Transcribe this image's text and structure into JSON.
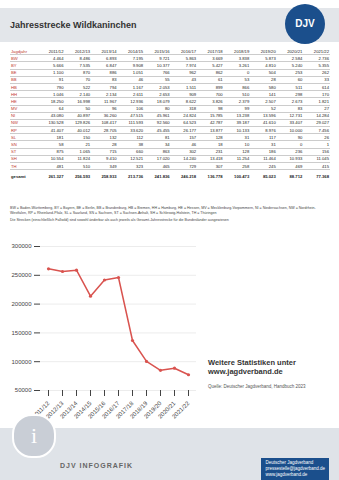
{
  "header": {
    "title": "Jahresstrecke Wildkaninchen",
    "logo": "DJV"
  },
  "table": {
    "columns": [
      "Jagdjahr",
      "2011/12",
      "2012/13",
      "2013/14",
      "2014/15",
      "2015/16",
      "2016/17",
      "2017/18",
      "2018/19",
      "2019/20",
      "2020/21",
      "2021/22"
    ],
    "rows": [
      [
        "BW",
        "4.464",
        "8.486",
        "6.893",
        "7.195",
        "9.721",
        "5.863",
        "3.669",
        "3.838",
        "5.873",
        "2.584",
        "2.736"
      ],
      [
        "BY",
        "5.666",
        "7.535",
        "6.847",
        "9.908",
        "10.377",
        "7.974",
        "5.427",
        "3.261",
        "4.810",
        "5.240",
        "5.355"
      ],
      [
        "BE",
        "1.100",
        "870",
        "886",
        "1.051",
        "766",
        "962",
        "862",
        "0",
        "504",
        "253",
        "262"
      ],
      [
        "BB",
        "91",
        "70",
        "83",
        "46",
        "55",
        "43",
        "61",
        "53",
        "28",
        "60",
        "33"
      ],
      [
        "HB",
        "790",
        "522",
        "794",
        "1.167",
        "2.053",
        "1.511",
        "899",
        "866",
        "580",
        "511",
        "614"
      ],
      [
        "HH",
        "1.046",
        "2.140",
        "2.134",
        "2.611",
        "2.653",
        "909",
        "700",
        "510",
        "141",
        "298",
        "170"
      ],
      [
        "HE",
        "18.250",
        "16.998",
        "11.967",
        "12.936",
        "18.079",
        "8.622",
        "3.826",
        "2.379",
        "2.507",
        "2.673",
        "1.821"
      ],
      [
        "MV",
        "64",
        "50",
        "96",
        "106",
        "80",
        "318",
        "98",
        "99",
        "52",
        "83",
        "27"
      ],
      [
        "NI",
        "43.080",
        "40.897",
        "36.260",
        "47.515",
        "45.961",
        "24.824",
        "15.785",
        "13.238",
        "13.596",
        "12.731",
        "14.284"
      ],
      [
        "NW",
        "130.528",
        "129.826",
        "108.417",
        "111.593",
        "92.560",
        "64.523",
        "42.787",
        "39.187",
        "41.610",
        "33.407",
        "29.027"
      ],
      [
        "RP",
        "41.407",
        "40.012",
        "28.705",
        "33.620",
        "45.455",
        "26.177",
        "13.877",
        "10.133",
        "8.976",
        "10.000",
        "7.456"
      ],
      [
        "SL",
        "181",
        "150",
        "132",
        "112",
        "81",
        "157",
        "128",
        "31",
        "117",
        "90",
        "26"
      ],
      [
        "SN",
        "58",
        "21",
        "28",
        "38",
        "34",
        "46",
        "18",
        "10",
        "31",
        "0",
        "1"
      ],
      [
        "ST",
        "875",
        "1.065",
        "715",
        "660",
        "863",
        "302",
        "231",
        "128",
        "186",
        "236",
        "156"
      ],
      [
        "SH",
        "10.554",
        "11.824",
        "9.410",
        "12.521",
        "17.020",
        "14.240",
        "13.418",
        "11.254",
        "11.464",
        "10.933",
        "11.045"
      ],
      [
        "TH",
        "481",
        "510",
        "349",
        "323",
        "465",
        "729",
        "307",
        "258",
        "245",
        "469",
        "415"
      ]
    ],
    "total": [
      "gesamt",
      "261.327",
      "256.593",
      "258.933",
      "213.736",
      "241.836",
      "246.218",
      "136.778",
      "100.473",
      "85.023",
      "88.712",
      "77.368"
    ]
  },
  "notes": [
    "BW = Baden-Württemberg, BY = Bayern, BE = Berlin, BB = Brandenburg, HB = Bremen, HH = Hamburg, HE = Hessen, MV = Mecklenburg-Vorpommern, NI = Niedersachsen, NW = Nordrhein-Westfalen, RP = Rheinland-Pfalz, SL = Saarland, SN = Sachsen, ST = Sachsen-Anhalt, SH = Schleswig-Holstein, TH = Thüringen",
    "Die Strecken (einschließlich Fallwild) sind sowohl änderbar als auch jeweils als Gesamt-Jahresstrecke für die Bundesländer ausgewiesen"
  ],
  "chart_data": {
    "type": "line",
    "categories": [
      "2011/12",
      "2012/13",
      "2013/14",
      "2014/15",
      "2015/16",
      "2016/17",
      "2017/18",
      "2018/19",
      "2019/20",
      "2020/21",
      "2021/22"
    ],
    "values": [
      261327,
      256593,
      258933,
      213736,
      241836,
      246218,
      136778,
      100473,
      85023,
      88712,
      77368
    ],
    "color": "#d9534f",
    "marker": "circle",
    "ylim": [
      50000,
      300000
    ],
    "yticks": [
      50000,
      100000,
      150000,
      200000,
      250000,
      300000
    ],
    "grid": true
  },
  "more": [
    "Weitere Statistiken unter",
    "www.jagdverband.de"
  ],
  "source": "Quelle: Deutscher Jagdverband, Handbuch 2023",
  "footer": {
    "icon": "i",
    "left": "DJV INFOGRAFIK",
    "right": [
      "Deutscher Jagdverband",
      "pressestelle@jagdverband.de",
      "www.jagdverband.de"
    ]
  }
}
